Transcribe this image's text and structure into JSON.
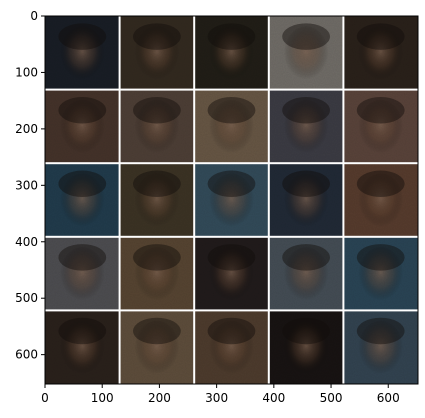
{
  "figure": {
    "type": "image-grid",
    "content": "5x5 grid of GAN-generated face samples (blurry, noisy)",
    "grid_rows": 5,
    "grid_cols": 5,
    "x_ticks": [
      0,
      100,
      200,
      300,
      400,
      500,
      600
    ],
    "y_ticks": [
      0,
      100,
      200,
      300,
      400,
      500,
      600
    ],
    "xlim": [
      0,
      652
    ],
    "ylim": [
      652,
      0
    ],
    "tile_separator_color": "#ffffff",
    "tile_colors": [
      [
        "#2b3442",
        "#5a4a38",
        "#3a3528",
        "#c9c2b8",
        "#4a3a2e"
      ],
      [
        "#7a5a4a",
        "#8a7060",
        "#b89a7a",
        "#6a6a78",
        "#a07868"
      ],
      [
        "#3a6a88",
        "#6a5a40",
        "#5a86a0",
        "#3a4a60",
        "#9a6a50"
      ],
      [
        "#8a8a90",
        "#9a7a58",
        "#3a3030",
        "#7a8a98",
        "#4a7a98"
      ],
      [
        "#4a3a30",
        "#a88a6a",
        "#8a6a50",
        "#2a2220",
        "#5a7890"
      ]
    ]
  }
}
